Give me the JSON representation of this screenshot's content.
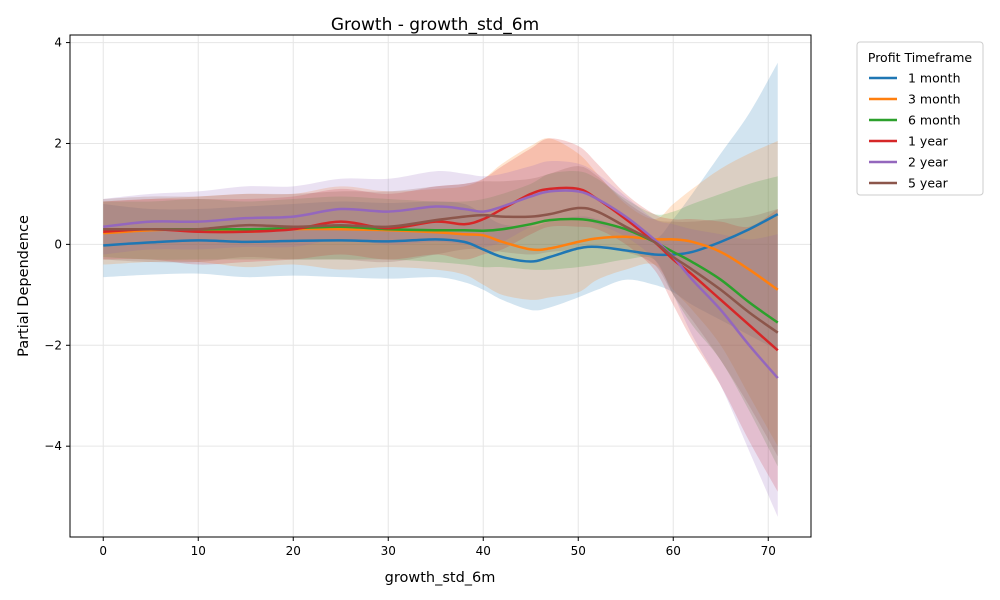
{
  "chart_data": {
    "type": "line",
    "title": "Growth - growth_std_6m",
    "xlabel": "growth_std_6m",
    "ylabel": "Partial Dependence",
    "xlim": [
      -3.5,
      74.5
    ],
    "ylim": [
      -5.8,
      4.15
    ],
    "xticks": [
      0,
      10,
      20,
      30,
      40,
      50,
      60,
      70
    ],
    "yticks": [
      4,
      2,
      0,
      -2,
      -4
    ],
    "ytick_labels": [
      "4",
      "2",
      "0",
      "−2",
      "−4"
    ],
    "grid": true,
    "legend": {
      "title": "Profit Timeframe",
      "placement": "outside-top-right"
    },
    "x": [
      0,
      5,
      10,
      15,
      20,
      25,
      30,
      35,
      38,
      40,
      42,
      45,
      47,
      50,
      52,
      55,
      58,
      60,
      62,
      65,
      68,
      71
    ],
    "series": [
      {
        "name": "1 month",
        "color": "#1f77b4",
        "values": [
          -0.02,
          0.04,
          0.08,
          0.05,
          0.07,
          0.08,
          0.06,
          0.1,
          0.05,
          -0.1,
          -0.25,
          -0.34,
          -0.25,
          -0.08,
          -0.05,
          -0.12,
          -0.2,
          -0.2,
          -0.15,
          0.05,
          0.3,
          0.6
        ],
        "upper": [
          0.8,
          0.7,
          0.7,
          0.75,
          0.8,
          0.85,
          0.82,
          0.85,
          0.8,
          0.6,
          0.4,
          0.35,
          0.45,
          0.55,
          0.5,
          0.3,
          0.1,
          0.5,
          1.0,
          1.8,
          2.6,
          3.6
        ],
        "lower": [
          -0.65,
          -0.6,
          -0.58,
          -0.65,
          -0.62,
          -0.65,
          -0.68,
          -0.65,
          -0.75,
          -0.9,
          -1.1,
          -1.3,
          -1.25,
          -1.05,
          -0.9,
          -0.7,
          -0.8,
          -0.95,
          -1.2,
          -1.5,
          -1.8,
          -2.1
        ]
      },
      {
        "name": "3 month",
        "color": "#ff7f0e",
        "values": [
          0.22,
          0.28,
          0.3,
          0.25,
          0.3,
          0.3,
          0.28,
          0.24,
          0.2,
          0.18,
          0.05,
          -0.1,
          -0.08,
          0.05,
          0.12,
          0.15,
          0.1,
          0.1,
          0.05,
          -0.15,
          -0.5,
          -0.9
        ],
        "upper": [
          0.85,
          0.9,
          0.95,
          1.0,
          1.0,
          1.15,
          1.05,
          1.1,
          1.15,
          1.3,
          1.6,
          1.95,
          2.1,
          1.8,
          1.4,
          0.8,
          0.5,
          0.8,
          1.1,
          1.5,
          1.8,
          2.05
        ],
        "lower": [
          -0.4,
          -0.35,
          -0.35,
          -0.45,
          -0.4,
          -0.5,
          -0.45,
          -0.5,
          -0.6,
          -0.8,
          -1.0,
          -1.1,
          -1.05,
          -0.95,
          -0.7,
          -0.5,
          -0.4,
          -0.9,
          -1.3,
          -2.0,
          -3.0,
          -4.0
        ]
      },
      {
        "name": "6 month",
        "color": "#2ca02c",
        "values": [
          0.3,
          0.3,
          0.3,
          0.3,
          0.32,
          0.35,
          0.3,
          0.28,
          0.28,
          0.27,
          0.3,
          0.4,
          0.48,
          0.5,
          0.45,
          0.3,
          0.05,
          -0.15,
          -0.35,
          -0.7,
          -1.15,
          -1.55
        ],
        "upper": [
          0.85,
          0.85,
          0.9,
          0.85,
          0.9,
          0.95,
          0.9,
          0.85,
          0.85,
          0.9,
          1.0,
          1.2,
          1.4,
          1.45,
          1.3,
          0.9,
          0.6,
          0.65,
          0.8,
          1.0,
          1.2,
          1.35
        ],
        "lower": [
          -0.25,
          -0.3,
          -0.3,
          -0.3,
          -0.3,
          -0.3,
          -0.3,
          -0.35,
          -0.4,
          -0.45,
          -0.45,
          -0.5,
          -0.5,
          -0.45,
          -0.4,
          -0.3,
          -0.3,
          -1.0,
          -1.6,
          -2.3,
          -3.3,
          -4.4
        ]
      },
      {
        "name": "1 year",
        "color": "#d62728",
        "values": [
          0.25,
          0.3,
          0.25,
          0.25,
          0.3,
          0.45,
          0.32,
          0.45,
          0.4,
          0.5,
          0.7,
          1.0,
          1.1,
          1.1,
          0.9,
          0.5,
          0.05,
          -0.3,
          -0.6,
          -1.1,
          -1.6,
          -2.1
        ],
        "upper": [
          0.85,
          0.9,
          0.9,
          0.9,
          0.95,
          1.1,
          1.0,
          1.15,
          1.2,
          1.3,
          1.55,
          1.9,
          2.1,
          1.95,
          1.6,
          1.0,
          0.6,
          0.5,
          0.5,
          0.45,
          0.35,
          0.7
        ],
        "lower": [
          -0.3,
          -0.3,
          -0.4,
          -0.35,
          -0.3,
          -0.2,
          -0.3,
          -0.2,
          -0.3,
          -0.2,
          -0.1,
          0.2,
          0.35,
          0.35,
          0.3,
          0.0,
          -0.5,
          -1.2,
          -1.9,
          -2.8,
          -3.9,
          -4.9
        ]
      },
      {
        "name": "2 year",
        "color": "#9467bd",
        "values": [
          0.35,
          0.45,
          0.45,
          0.52,
          0.55,
          0.7,
          0.65,
          0.75,
          0.7,
          0.65,
          0.75,
          0.95,
          1.05,
          1.05,
          0.9,
          0.55,
          0.1,
          -0.25,
          -0.7,
          -1.3,
          -2.0,
          -2.65
        ],
        "upper": [
          0.9,
          1.0,
          1.05,
          1.15,
          1.15,
          1.3,
          1.3,
          1.45,
          1.4,
          1.35,
          1.4,
          1.55,
          1.65,
          1.6,
          1.4,
          0.95,
          0.5,
          0.4,
          0.3,
          0.2,
          0.1,
          0.2
        ],
        "lower": [
          -0.2,
          -0.1,
          -0.1,
          -0.05,
          -0.05,
          0.1,
          0.0,
          0.05,
          0.0,
          -0.05,
          0.05,
          0.35,
          0.45,
          0.5,
          0.4,
          0.15,
          -0.3,
          -1.0,
          -1.8,
          -2.8,
          -4.1,
          -5.4
        ]
      },
      {
        "name": "5 year",
        "color": "#8c564b",
        "values": [
          0.3,
          0.3,
          0.3,
          0.38,
          0.35,
          0.38,
          0.35,
          0.48,
          0.55,
          0.58,
          0.55,
          0.55,
          0.6,
          0.72,
          0.65,
          0.35,
          0.05,
          -0.25,
          -0.5,
          -0.9,
          -1.35,
          -1.75
        ],
        "upper": [
          0.9,
          0.95,
          0.95,
          1.0,
          1.0,
          1.05,
          1.05,
          1.15,
          1.2,
          1.25,
          1.25,
          1.3,
          1.4,
          1.55,
          1.35,
          0.85,
          0.5,
          0.45,
          0.45,
          0.5,
          0.55,
          0.7
        ],
        "lower": [
          -0.3,
          -0.35,
          -0.35,
          -0.25,
          -0.3,
          -0.3,
          -0.35,
          -0.2,
          -0.1,
          -0.1,
          -0.15,
          -0.2,
          -0.15,
          -0.1,
          -0.05,
          -0.15,
          -0.4,
          -1.0,
          -1.5,
          -2.3,
          -3.2,
          -4.2
        ]
      }
    ]
  }
}
